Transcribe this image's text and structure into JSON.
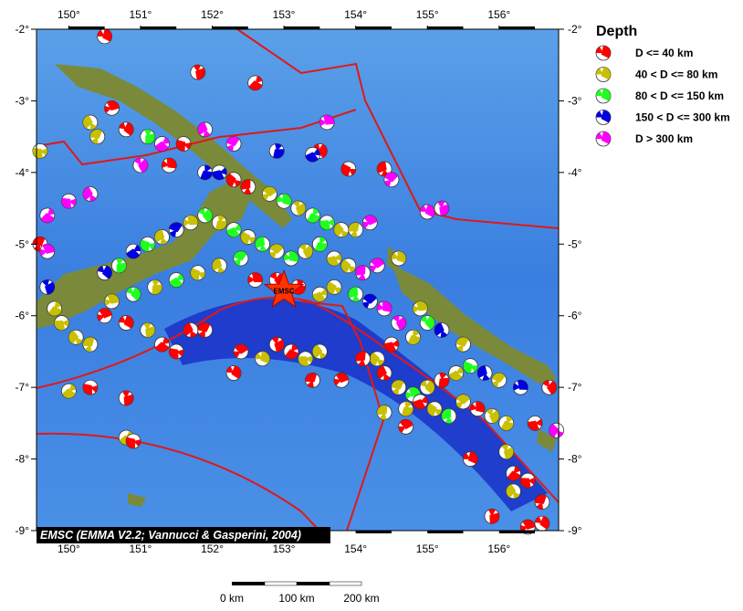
{
  "map": {
    "lon_range": [
      149.55,
      156.83
    ],
    "lat_range": [
      -9.0,
      -2.0
    ],
    "lon_ticks": [
      "150°",
      "151°",
      "152°",
      "153°",
      "154°",
      "155°",
      "156°"
    ],
    "lat_ticks": [
      "-2°",
      "-3°",
      "-4°",
      "-5°",
      "-6°",
      "-7°",
      "-8°",
      "-9°"
    ],
    "credit": "EMSC (EMMA V2.2; Vannucci & Gasperini, 2004)",
    "marker_label": "EMSC",
    "marker_pos": [
      153.0,
      -5.65
    ],
    "colors": {
      "ocean": "#4a8fe0",
      "deep": "#1020c0",
      "land": "#7a8a3a",
      "boundary": "#e01818"
    }
  },
  "legend": {
    "title": "Depth",
    "items": [
      {
        "label": "D <= 40 km",
        "color": "#ff0000"
      },
      {
        "label": "40 < D <= 80 km",
        "color": "#c8c000"
      },
      {
        "label": "80 < D <= 150 km",
        "color": "#20ff20"
      },
      {
        "label": "150 < D <= 300 km",
        "color": "#0000e0"
      },
      {
        "label": "D > 300 km",
        "color": "#ff00ff"
      }
    ]
  },
  "scale": {
    "labels": [
      "0 km",
      "100 km",
      "200 km"
    ]
  },
  "events": [
    [
      150.5,
      -2.1,
      0
    ],
    [
      151.8,
      -2.6,
      0
    ],
    [
      152.6,
      -2.75,
      0
    ],
    [
      149.6,
      -3.7,
      1
    ],
    [
      150.3,
      -3.3,
      1
    ],
    [
      150.4,
      -3.5,
      1
    ],
    [
      150.6,
      -3.1,
      0
    ],
    [
      150.8,
      -3.4,
      0
    ],
    [
      151.1,
      -3.5,
      2
    ],
    [
      151.3,
      -3.6,
      4
    ],
    [
      151.6,
      -3.6,
      0
    ],
    [
      151.9,
      -3.4,
      4
    ],
    [
      152.3,
      -3.6,
      4
    ],
    [
      153.6,
      -3.3,
      4
    ],
    [
      153.5,
      -3.7,
      0
    ],
    [
      152.9,
      -3.7,
      3
    ],
    [
      153.4,
      -3.75,
      3
    ],
    [
      153.9,
      -3.95,
      0
    ],
    [
      154.4,
      -3.95,
      0
    ],
    [
      154.5,
      -4.1,
      4
    ],
    [
      151.4,
      -3.9,
      0
    ],
    [
      151.0,
      -3.9,
      4
    ],
    [
      151.9,
      -4.0,
      3
    ],
    [
      152.1,
      -4.0,
      3
    ],
    [
      152.3,
      -4.1,
      0
    ],
    [
      152.5,
      -4.2,
      0
    ],
    [
      152.8,
      -4.3,
      1
    ],
    [
      153.0,
      -4.4,
      2
    ],
    [
      153.2,
      -4.5,
      1
    ],
    [
      153.4,
      -4.6,
      2
    ],
    [
      153.6,
      -4.7,
      2
    ],
    [
      153.8,
      -4.8,
      1
    ],
    [
      154.0,
      -4.8,
      1
    ],
    [
      154.2,
      -4.7,
      4
    ],
    [
      155.0,
      -4.55,
      4
    ],
    [
      155.2,
      -4.5,
      4
    ],
    [
      149.7,
      -4.6,
      4
    ],
    [
      150.0,
      -4.4,
      4
    ],
    [
      150.3,
      -4.3,
      4
    ],
    [
      149.6,
      -5.0,
      0
    ],
    [
      149.7,
      -5.1,
      4
    ],
    [
      150.5,
      -5.4,
      3
    ],
    [
      150.7,
      -5.3,
      2
    ],
    [
      150.9,
      -5.1,
      3
    ],
    [
      151.1,
      -5.0,
      2
    ],
    [
      151.3,
      -4.9,
      1
    ],
    [
      151.5,
      -4.8,
      3
    ],
    [
      151.7,
      -4.7,
      1
    ],
    [
      151.9,
      -4.6,
      2
    ],
    [
      152.1,
      -4.7,
      1
    ],
    [
      152.3,
      -4.8,
      2
    ],
    [
      152.5,
      -4.9,
      1
    ],
    [
      152.7,
      -5.0,
      2
    ],
    [
      152.9,
      -5.1,
      1
    ],
    [
      153.1,
      -5.2,
      2
    ],
    [
      153.3,
      -5.1,
      1
    ],
    [
      153.5,
      -5.0,
      2
    ],
    [
      153.7,
      -5.2,
      1
    ],
    [
      153.9,
      -5.3,
      1
    ],
    [
      154.1,
      -5.4,
      4
    ],
    [
      154.3,
      -5.3,
      4
    ],
    [
      154.6,
      -5.2,
      1
    ],
    [
      149.7,
      -5.6,
      3
    ],
    [
      149.8,
      -5.9,
      1
    ],
    [
      149.9,
      -6.1,
      1
    ],
    [
      150.1,
      -6.3,
      1
    ],
    [
      150.3,
      -6.4,
      1
    ],
    [
      150.5,
      -6.0,
      0
    ],
    [
      150.8,
      -6.1,
      0
    ],
    [
      151.1,
      -6.2,
      1
    ],
    [
      151.3,
      -6.4,
      0
    ],
    [
      151.5,
      -6.5,
      0
    ],
    [
      151.7,
      -6.2,
      0
    ],
    [
      151.9,
      -6.2,
      0
    ],
    [
      150.6,
      -5.8,
      1
    ],
    [
      150.9,
      -5.7,
      2
    ],
    [
      151.2,
      -5.6,
      1
    ],
    [
      151.5,
      -5.5,
      2
    ],
    [
      151.8,
      -5.4,
      1
    ],
    [
      152.1,
      -5.3,
      1
    ],
    [
      152.4,
      -5.2,
      2
    ],
    [
      152.6,
      -5.5,
      0
    ],
    [
      152.9,
      -5.5,
      0
    ],
    [
      153.2,
      -5.6,
      0
    ],
    [
      153.5,
      -5.7,
      1
    ],
    [
      153.7,
      -5.6,
      1
    ],
    [
      154.0,
      -5.7,
      2
    ],
    [
      154.2,
      -5.8,
      3
    ],
    [
      154.4,
      -5.9,
      4
    ],
    [
      154.6,
      -6.1,
      4
    ],
    [
      154.8,
      -6.3,
      1
    ],
    [
      154.5,
      -6.4,
      0
    ],
    [
      154.3,
      -6.6,
      1
    ],
    [
      154.1,
      -6.6,
      0
    ],
    [
      152.4,
      -6.5,
      0
    ],
    [
      152.7,
      -6.6,
      1
    ],
    [
      152.9,
      -6.4,
      0
    ],
    [
      153.1,
      -6.5,
      0
    ],
    [
      153.3,
      -6.6,
      1
    ],
    [
      153.5,
      -6.5,
      1
    ],
    [
      153.4,
      -6.9,
      0
    ],
    [
      153.8,
      -6.9,
      0
    ],
    [
      152.3,
      -6.8,
      0
    ],
    [
      150.8,
      -7.15,
      0
    ],
    [
      150.0,
      -7.05,
      1
    ],
    [
      150.3,
      -7.0,
      0
    ],
    [
      154.4,
      -6.8,
      0
    ],
    [
      154.6,
      -7.0,
      1
    ],
    [
      154.8,
      -7.1,
      2
    ],
    [
      155.0,
      -7.0,
      1
    ],
    [
      155.2,
      -6.9,
      0
    ],
    [
      155.4,
      -6.8,
      1
    ],
    [
      155.6,
      -6.7,
      2
    ],
    [
      155.8,
      -6.8,
      3
    ],
    [
      156.0,
      -6.9,
      1
    ],
    [
      156.3,
      -7.0,
      3
    ],
    [
      156.7,
      -7.0,
      0
    ],
    [
      154.7,
      -7.3,
      1
    ],
    [
      154.9,
      -7.2,
      0
    ],
    [
      155.1,
      -7.3,
      1
    ],
    [
      155.3,
      -7.4,
      2
    ],
    [
      155.5,
      -7.2,
      1
    ],
    [
      155.7,
      -7.3,
      0
    ],
    [
      155.9,
      -7.4,
      1
    ],
    [
      156.1,
      -7.5,
      1
    ],
    [
      156.5,
      -7.5,
      0
    ],
    [
      156.8,
      -7.6,
      4
    ],
    [
      154.4,
      -7.35,
      1
    ],
    [
      154.7,
      -7.55,
      0
    ],
    [
      155.6,
      -8.0,
      0
    ],
    [
      156.1,
      -7.9,
      1
    ],
    [
      156.2,
      -8.2,
      0
    ],
    [
      156.4,
      -8.3,
      0
    ],
    [
      156.2,
      -8.45,
      1
    ],
    [
      156.6,
      -8.6,
      0
    ],
    [
      156.4,
      -8.95,
      0
    ],
    [
      156.6,
      -8.9,
      0
    ],
    [
      155.9,
      -8.8,
      0
    ],
    [
      150.8,
      -7.7,
      1
    ],
    [
      150.9,
      -7.75,
      0
    ],
    [
      155.2,
      -6.2,
      3
    ],
    [
      155.5,
      -6.4,
      1
    ],
    [
      154.9,
      -5.9,
      1
    ],
    [
      155.0,
      -6.1,
      2
    ]
  ]
}
